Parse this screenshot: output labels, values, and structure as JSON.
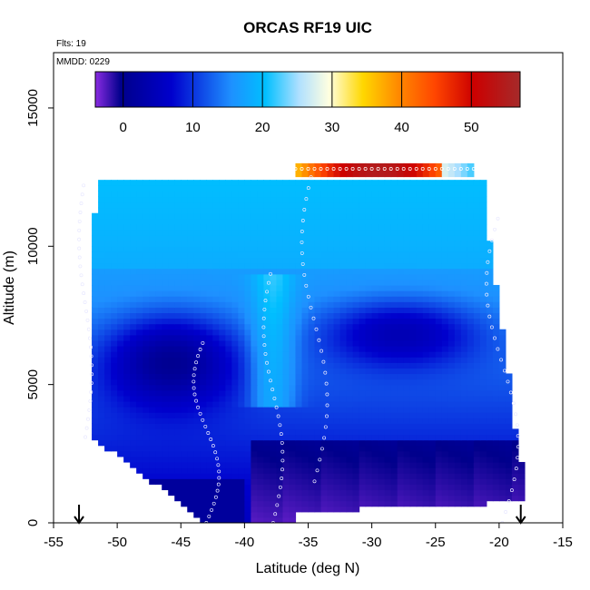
{
  "chart_data": {
    "type": "heatmap",
    "title": "ORCAS RF19 UIC",
    "flight_note": "Flts: 19",
    "date_note": "MMDD: 0229",
    "xlabel": "Latitude (deg N)",
    "ylabel": "Altitude (m)",
    "xlim": [
      -55,
      -15
    ],
    "ylim": [
      0,
      17000
    ],
    "x_ticks": [
      -55,
      -50,
      -45,
      -40,
      -35,
      -30,
      -25,
      -20,
      -15
    ],
    "x_tick_labels": [
      "-55",
      "-50",
      "-45",
      "-40",
      "-35",
      "-30",
      "-25",
      "-20",
      "-15"
    ],
    "y_ticks": [
      0,
      5000,
      10000,
      15000
    ],
    "y_tick_labels": [
      "0",
      "5000",
      "10000",
      "15000"
    ],
    "colorbar": {
      "range": [
        -4,
        57
      ],
      "ticks": [
        0,
        10,
        20,
        30,
        40,
        50
      ],
      "tick_labels": [
        "0",
        "10",
        "20",
        "30",
        "40",
        "50"
      ],
      "colors": [
        "#8a2be2",
        "#00008b",
        "#0000cd",
        "#1e90ff",
        "#00bfff",
        "#b0e0ff",
        "#ffffe0",
        "#ffd700",
        "#ff8c00",
        "#ff4500",
        "#cc0000",
        "#a52a2a"
      ]
    },
    "markers": [
      {
        "lat": -53,
        "label": "down-arrow"
      },
      {
        "lat": -18.3,
        "label": "down-arrow"
      }
    ],
    "field_description_regions": [
      {
        "lat_range": [
          -53,
          -21
        ],
        "alt_range": [
          0,
          12300
        ],
        "value_typical": 10
      }
    ],
    "profiles": [
      {
        "lat_start": -53,
        "lat_end": -52,
        "alt_range": [
          3100,
          12200
        ]
      },
      {
        "lat_start": -44,
        "lat_end": -42,
        "alt_range": [
          0,
          6500
        ]
      },
      {
        "lat_start": -38.5,
        "lat_end": -37,
        "alt_range": [
          0,
          9000
        ]
      },
      {
        "lat_start": -35.5,
        "lat_end": -33.5,
        "alt_range": [
          1500,
          12500
        ]
      },
      {
        "lat_start": -21,
        "lat_end": -18.5,
        "alt_range": [
          0,
          11000
        ]
      }
    ],
    "top_layer": {
      "lat_range": [
        -36,
        -22
      ],
      "alt_range": [
        12500,
        13000
      ],
      "value_typical": 50
    }
  }
}
